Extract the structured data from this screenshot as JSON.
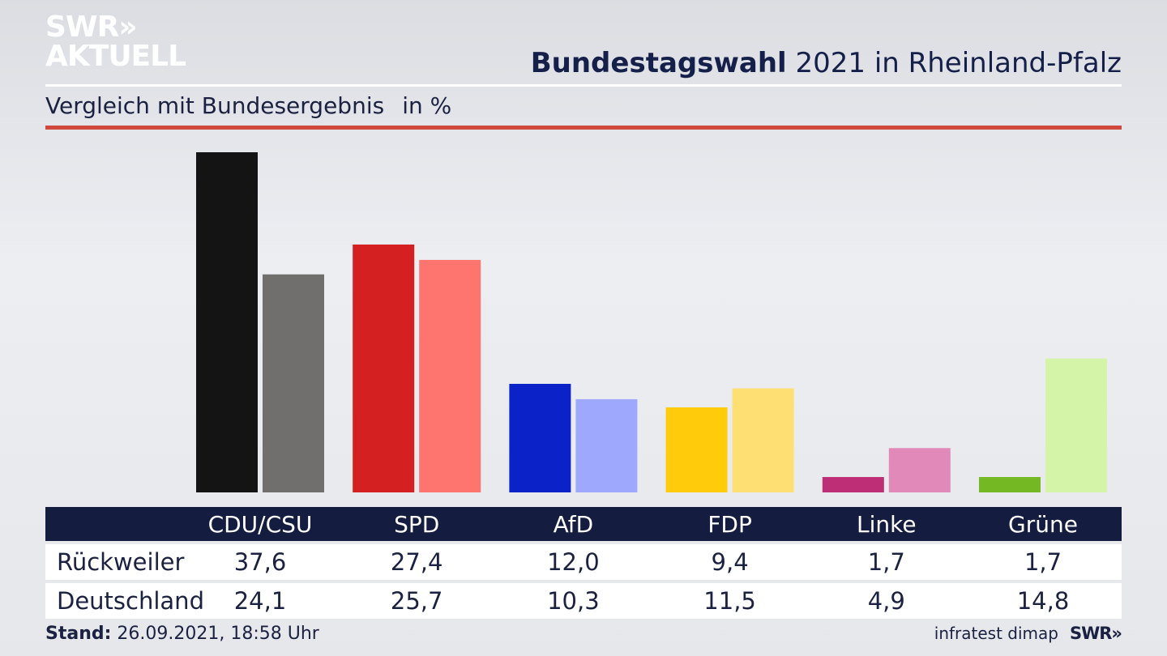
{
  "logo": {
    "line1": "SWR",
    "chevrons": "»",
    "line2": "AKTUELL"
  },
  "header": {
    "title_bold": "Bundestagswahl",
    "title_rest": " 2021 in Rheinland-Pfalz",
    "subtitle": "Vergleich mit Bundesergebnis",
    "unit": "in %"
  },
  "footer": {
    "stand_label": "Stand:",
    "stand_value": " 26.09.2021, 18:58 Uhr",
    "source": "infratest dimap",
    "brand": "SWR»"
  },
  "colors": {
    "primary": [
      "#141414",
      "#d42020",
      "#0a22c8",
      "#ffcb0a",
      "#bd2e76",
      "#74b824"
    ],
    "secondary": [
      "#706f6d",
      "#fe7570",
      "#9ea9fe",
      "#fedf74",
      "#e18ab9",
      "#d4f4a8"
    ]
  },
  "chart_data": {
    "type": "bar",
    "categories": [
      "CDU/CSU",
      "SPD",
      "AfD",
      "FDP",
      "Linke",
      "Grüne"
    ],
    "series": [
      {
        "name": "Rückweiler",
        "values": [
          37.6,
          27.4,
          12.0,
          9.4,
          1.7,
          1.7
        ],
        "labels": [
          "37,6",
          "27,4",
          "12,0",
          "9,4",
          "1,7",
          "1,7"
        ]
      },
      {
        "name": "Deutschland",
        "values": [
          24.1,
          25.7,
          10.3,
          11.5,
          4.9,
          14.8
        ],
        "labels": [
          "24,1",
          "25,7",
          "10,3",
          "11,5",
          "4,9",
          "14,8"
        ]
      }
    ],
    "ylim": [
      0,
      37.6
    ],
    "grid": false,
    "legend": "table-below"
  }
}
